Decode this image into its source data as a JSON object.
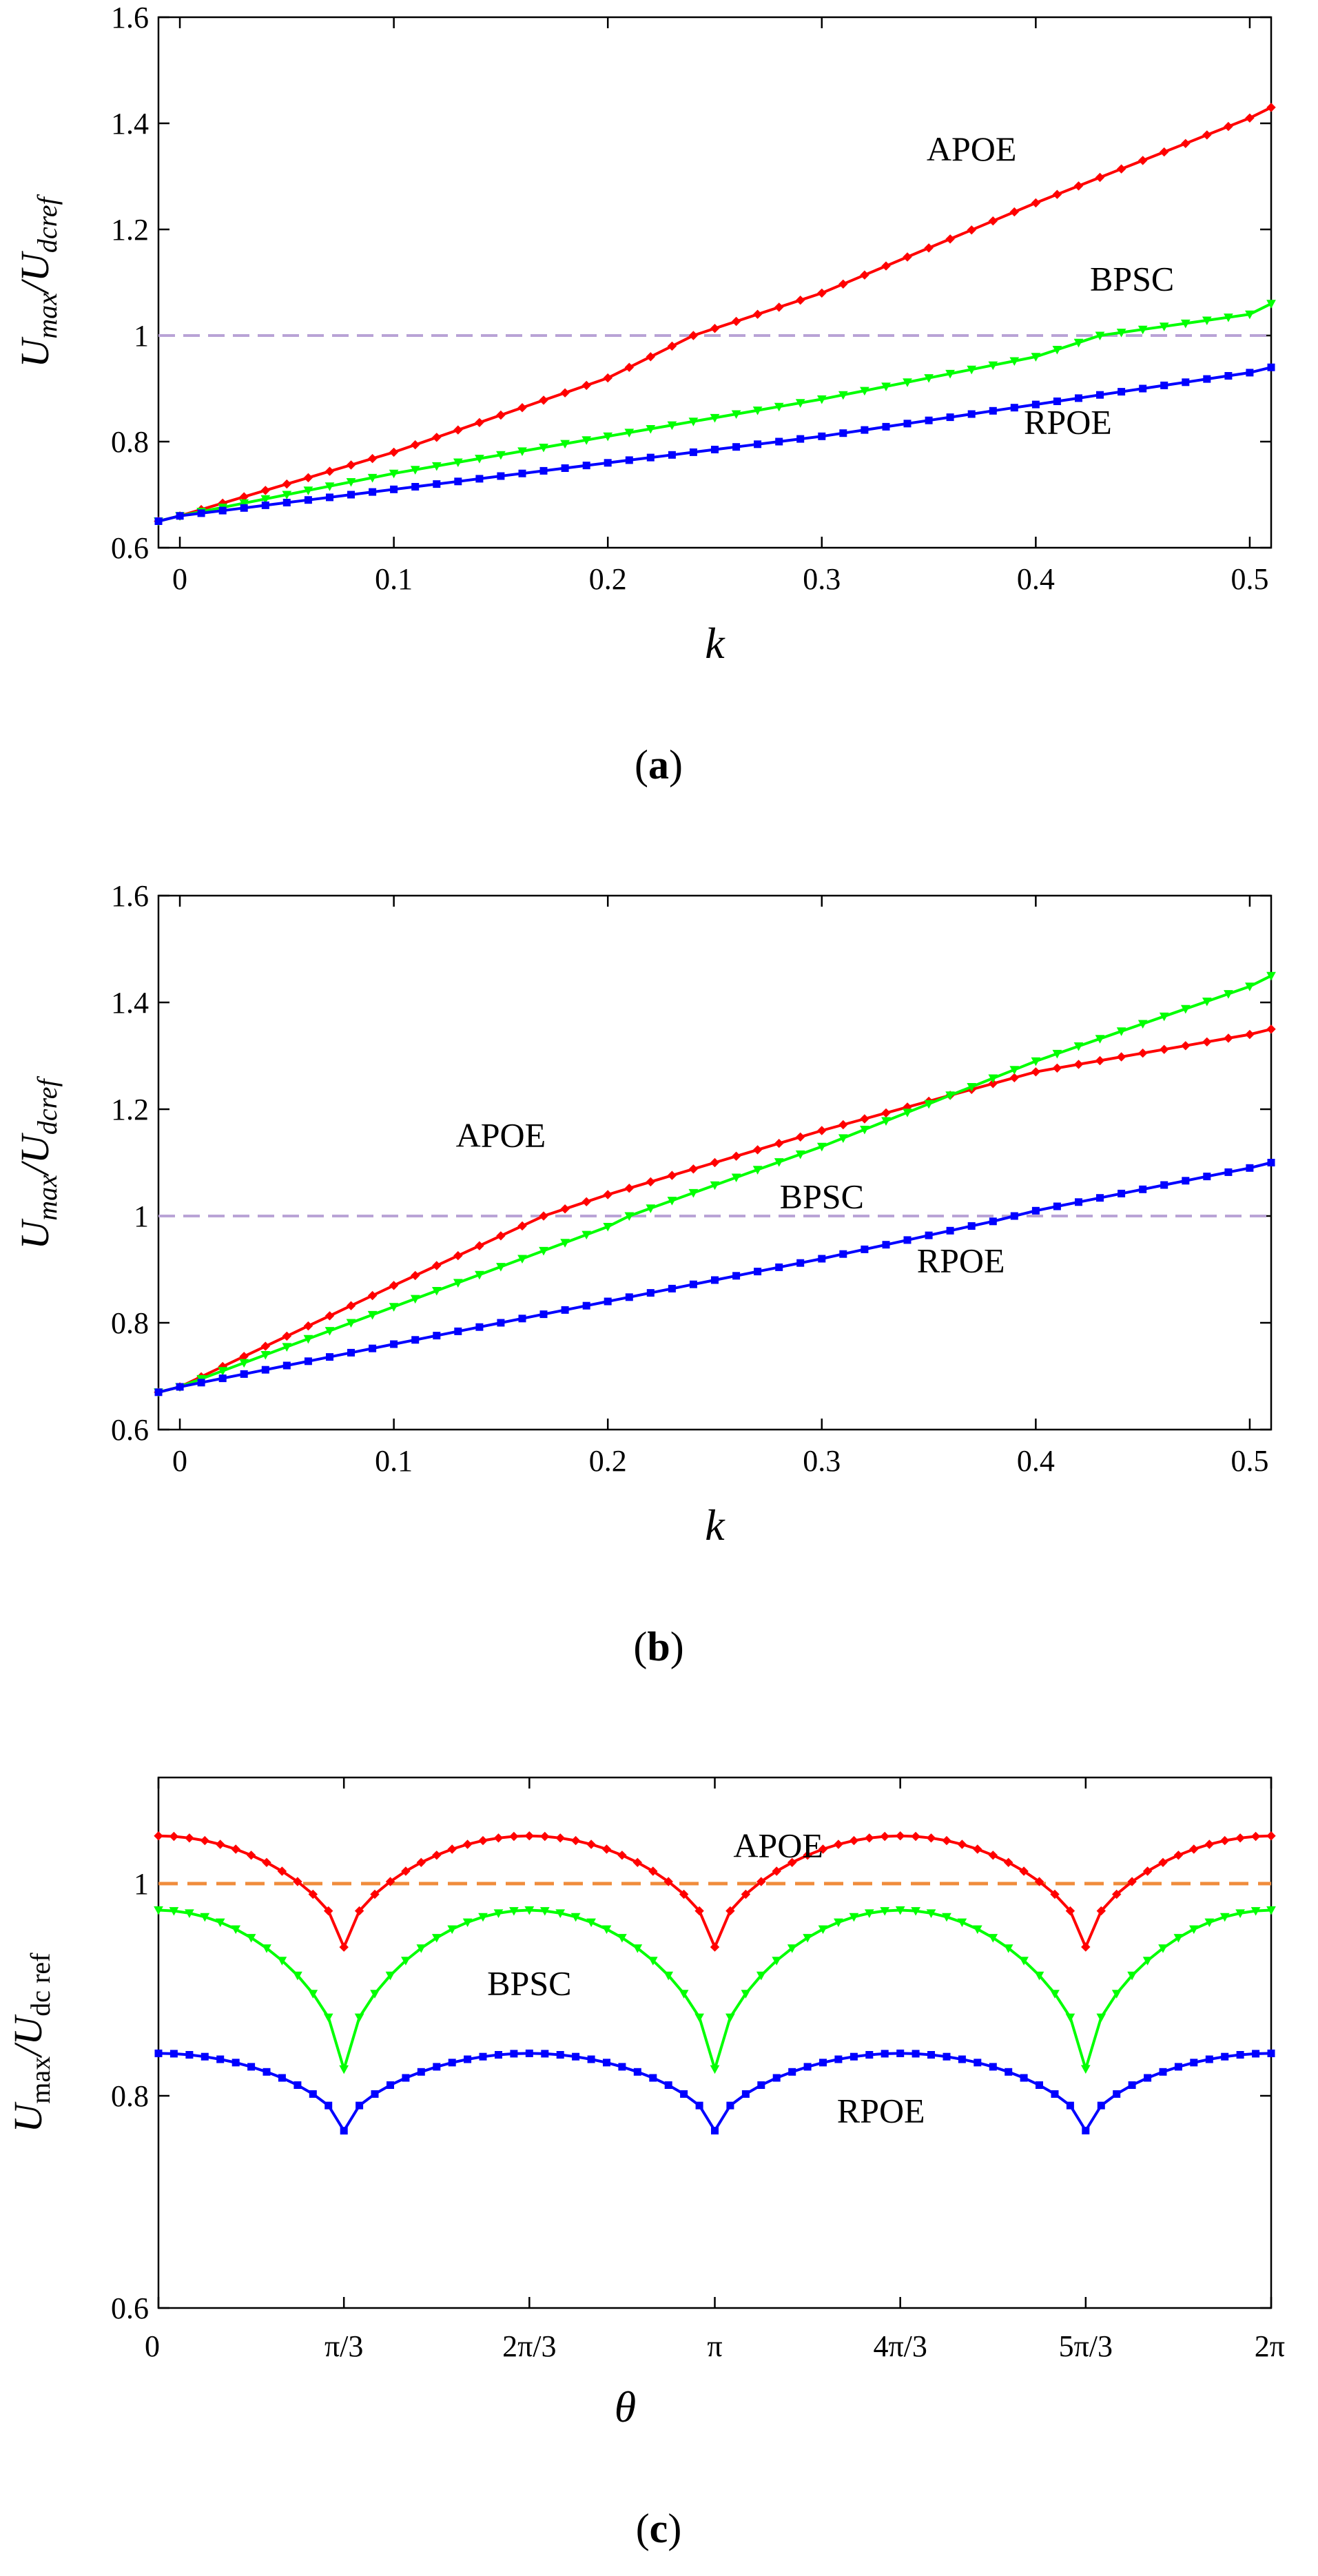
{
  "chart_data": [
    {
      "type": "line",
      "panel": "a",
      "caption": "(a)",
      "caption_parts": [
        "(",
        "a",
        ")"
      ],
      "ylabel": {
        "U": "U",
        "num_sub": "max",
        "slash": "/",
        "U2": "U",
        "den_sub": "dcref"
      },
      "xlabel": "k",
      "xlim": [
        -0.01,
        0.51
      ],
      "ylim": [
        0.6,
        1.6
      ],
      "xticks": [
        0,
        0.1,
        0.2,
        0.3,
        0.4,
        0.5
      ],
      "xtick_labels": [
        "0",
        "0.1",
        "0.2",
        "0.3",
        "0.4",
        "0.5"
      ],
      "yticks": [
        0.6,
        0.8,
        1.0,
        1.2,
        1.4,
        1.6
      ],
      "ytick_labels": [
        "0.6",
        "0.8",
        "1",
        "1.2",
        "1.4",
        "1.6"
      ],
      "reference_line": {
        "y": 1.0,
        "color": "#b9a3d6"
      },
      "x_range": [
        -0.01,
        0.51
      ],
      "n_points": 53,
      "series": [
        {
          "name": "APOE",
          "color": "#ff0000",
          "marker": "diamond",
          "x": [
            -0.01,
            0.0,
            0.1,
            0.2,
            0.24,
            0.3,
            0.4,
            0.5,
            0.51
          ],
          "values": [
            0.65,
            0.66,
            0.78,
            0.92,
            1.0,
            1.08,
            1.25,
            1.41,
            1.43
          ]
        },
        {
          "name": "BPSC",
          "color": "#00ff00",
          "marker": "triangle",
          "x": [
            -0.01,
            0.0,
            0.1,
            0.2,
            0.3,
            0.4,
            0.43,
            0.5,
            0.51
          ],
          "values": [
            0.65,
            0.66,
            0.74,
            0.81,
            0.88,
            0.96,
            1.0,
            1.04,
            1.06
          ]
        },
        {
          "name": "RPOE",
          "color": "#0000ff",
          "marker": "square",
          "x": [
            -0.01,
            0.0,
            0.1,
            0.2,
            0.3,
            0.4,
            0.5,
            0.51
          ],
          "values": [
            0.65,
            0.66,
            0.71,
            0.76,
            0.81,
            0.87,
            0.93,
            0.94
          ]
        }
      ],
      "annotations": [
        {
          "text": "APOE",
          "x": 0.37,
          "y": 1.33
        },
        {
          "text": "BPSC",
          "x": 0.445,
          "y": 1.085
        },
        {
          "text": "RPOE",
          "x": 0.415,
          "y": 0.815
        }
      ]
    },
    {
      "type": "line",
      "panel": "b",
      "caption": "(b)",
      "caption_parts": [
        "(",
        "b",
        ")"
      ],
      "ylabel": {
        "U": "U",
        "num_sub": "max",
        "slash": "/",
        "U2": "U",
        "den_sub": "dcref"
      },
      "xlabel": "k",
      "xlim": [
        -0.01,
        0.51
      ],
      "ylim": [
        0.6,
        1.6
      ],
      "xticks": [
        0,
        0.1,
        0.2,
        0.3,
        0.4,
        0.5
      ],
      "xtick_labels": [
        "0",
        "0.1",
        "0.2",
        "0.3",
        "0.4",
        "0.5"
      ],
      "yticks": [
        0.6,
        0.8,
        1.0,
        1.2,
        1.4,
        1.6
      ],
      "ytick_labels": [
        "0.6",
        "0.8",
        "1",
        "1.2",
        "1.4",
        "1.6"
      ],
      "reference_line": {
        "y": 1.0,
        "color": "#b9a3d6"
      },
      "x_range": [
        -0.01,
        0.51
      ],
      "n_points": 53,
      "series": [
        {
          "name": "APOE",
          "color": "#ff0000",
          "marker": "diamond",
          "x": [
            -0.01,
            0.0,
            0.1,
            0.17,
            0.2,
            0.3,
            0.4,
            0.5,
            0.51
          ],
          "values": [
            0.67,
            0.68,
            0.87,
            1.0,
            1.04,
            1.16,
            1.27,
            1.34,
            1.35
          ]
        },
        {
          "name": "BPSC",
          "color": "#00ff00",
          "marker": "triangle",
          "x": [
            -0.01,
            0.0,
            0.1,
            0.2,
            0.21,
            0.3,
            0.4,
            0.5,
            0.51
          ],
          "values": [
            0.67,
            0.68,
            0.83,
            0.98,
            1.0,
            1.13,
            1.29,
            1.43,
            1.45
          ]
        },
        {
          "name": "RPOE",
          "color": "#0000ff",
          "marker": "square",
          "x": [
            -0.01,
            0.0,
            0.1,
            0.2,
            0.3,
            0.38,
            0.4,
            0.5,
            0.51
          ],
          "values": [
            0.67,
            0.68,
            0.76,
            0.84,
            0.92,
            0.99,
            1.01,
            1.09,
            1.1
          ]
        }
      ],
      "annotations": [
        {
          "text": "APOE",
          "x": 0.15,
          "y": 1.13
        },
        {
          "text": "BPSC",
          "x": 0.3,
          "y": 1.015
        },
        {
          "text": "RPOE",
          "x": 0.365,
          "y": 0.895
        }
      ]
    },
    {
      "type": "line",
      "panel": "c",
      "caption": "(c)",
      "caption_parts": [
        "(",
        "c",
        ")"
      ],
      "ylabel": {
        "U": "U",
        "num_sub": "max",
        "slash": "/",
        "U2": "U",
        "den_sub": "dc ref"
      },
      "xlabel": "θ",
      "xlim": [
        0,
        6.2832
      ],
      "ylim": [
        0.6,
        1.1
      ],
      "xticks": [
        0,
        1.0472,
        2.0944,
        3.1416,
        4.1888,
        5.236,
        6.2832
      ],
      "xtick_labels": [
        "0",
        "π/3",
        "2π/3",
        "π",
        "4π/3",
        "5π/3",
        "2π"
      ],
      "yticks": [
        0.6,
        0.8,
        1.0
      ],
      "ytick_labels": [
        "0.6",
        "0.8",
        "1"
      ],
      "reference_line": {
        "y": 1.0,
        "color": "#f08c3c"
      },
      "x_range": [
        0,
        6.2832
      ],
      "n_points": 73,
      "series": [
        {
          "name": "APOE",
          "color": "#ff0000",
          "marker": "diamond",
          "peak": 1.045,
          "trough": 0.94
        },
        {
          "name": "BPSC",
          "color": "#00ff00",
          "marker": "triangle",
          "peak": 0.975,
          "trough": 0.825
        },
        {
          "name": "RPOE",
          "color": "#0000ff",
          "marker": "square",
          "peak": 0.84,
          "trough": 0.767
        }
      ],
      "annotations": [
        {
          "text": "APOE",
          "x": 3.5,
          "y": 1.025
        },
        {
          "text": "BPSC",
          "x": 2.0944,
          "y": 0.895
        },
        {
          "text": "RPOE",
          "x": 4.08,
          "y": 0.775
        }
      ]
    }
  ]
}
